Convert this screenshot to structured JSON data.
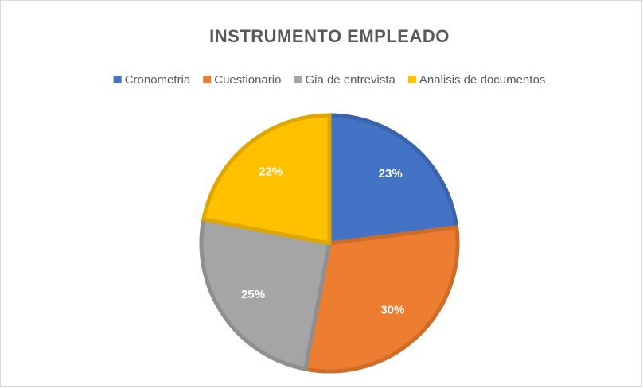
{
  "chart_data": {
    "type": "pie",
    "title": "INSTRUMENTO EMPLEADO",
    "categories": [
      "Cronometria",
      "Cuestionario",
      "Gia de entrevista",
      "Analisis de documentos"
    ],
    "values": [
      23,
      30,
      25,
      22
    ],
    "value_labels": [
      "23%",
      "30%",
      "25%",
      "22%"
    ],
    "colors": [
      "#4472c4",
      "#ed7d31",
      "#a5a5a5",
      "#ffc000"
    ],
    "legend": "top"
  }
}
